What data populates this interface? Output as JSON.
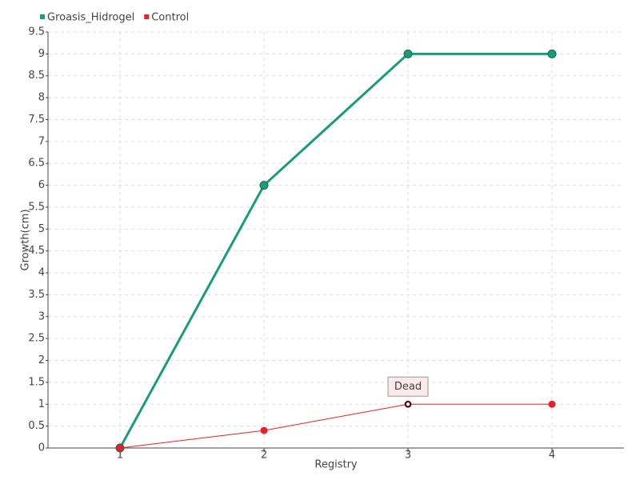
{
  "chart_data": {
    "type": "line",
    "x_label": "Registry",
    "y_label": "Growth(cm)",
    "categories": [
      "1",
      "2",
      "3",
      "4"
    ],
    "series": [
      {
        "name": "Groasis_Hidrogel",
        "color": "#1a9b7c",
        "values": [
          0,
          6,
          9,
          9
        ]
      },
      {
        "name": "Control",
        "color": "#e8202a",
        "values": [
          0,
          0.4,
          1,
          1
        ]
      }
    ],
    "ylim": [
      0,
      9.5
    ],
    "yticks": [
      0,
      0.5,
      1,
      1.5,
      2,
      2.5,
      3,
      3.5,
      4,
      4.5,
      5,
      5.5,
      6,
      6.5,
      7,
      7.5,
      8,
      8.5,
      9,
      9.5
    ],
    "grid": true,
    "legend": "top-left",
    "annotations": [
      {
        "text": "Dead",
        "series": "Control",
        "category": "3"
      }
    ]
  }
}
